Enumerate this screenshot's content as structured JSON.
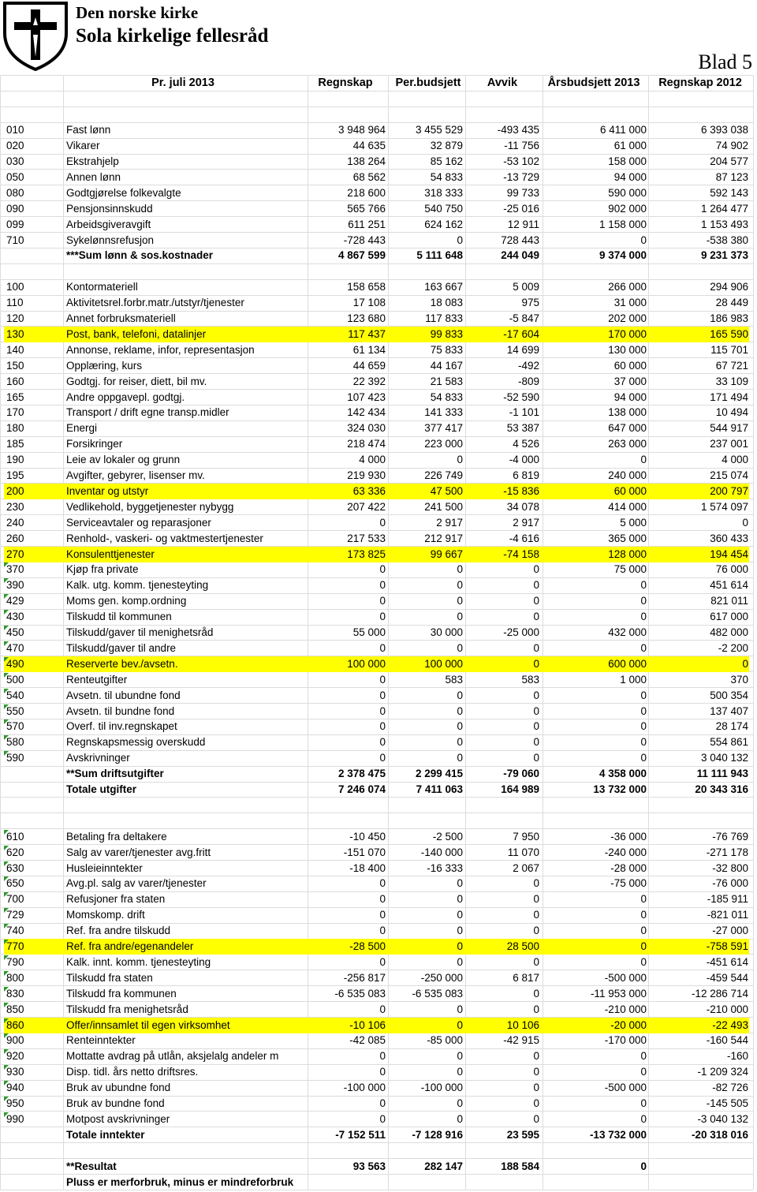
{
  "header": {
    "org": "Den norske kirke",
    "unit": "Sola kirkelige fellesråd",
    "sheet": "Blad 5"
  },
  "columns": [
    "Pr. juli 2013",
    "Regnskap",
    "Per.budsjett",
    "Avvik",
    "Årsbudsjett 2013",
    "Regnskap 2012"
  ],
  "groups": [
    {
      "rows": [
        {
          "code": "010",
          "name": "Fast lønn",
          "values": [
            "3 948 964",
            "3 455 529",
            "-493 435",
            "6 411 000",
            "6 393 038"
          ]
        },
        {
          "code": "020",
          "name": "Vikarer",
          "values": [
            "44 635",
            "32 879",
            "-11 756",
            "61 000",
            "74 902"
          ]
        },
        {
          "code": "030",
          "name": "Ekstrahjelp",
          "values": [
            "138 264",
            "85 162",
            "-53 102",
            "158 000",
            "204 577"
          ]
        },
        {
          "code": "050",
          "name": "Annen lønn",
          "values": [
            "68 562",
            "54 833",
            "-13 729",
            "94 000",
            "87 123"
          ]
        },
        {
          "code": "080",
          "name": "Godtgjørelse folkevalgte",
          "values": [
            "218 600",
            "318 333",
            "99 733",
            "590 000",
            "592 143"
          ]
        },
        {
          "code": "090",
          "name": "Pensjonsinnskudd",
          "values": [
            "565 766",
            "540 750",
            "-25 016",
            "902 000",
            "1 264 477"
          ]
        },
        {
          "code": "099",
          "name": "Arbeidsgiveravgift",
          "values": [
            "611 251",
            "624 162",
            "12 911",
            "1 158 000",
            "1 153 493"
          ]
        },
        {
          "code": "710",
          "name": "Sykelønnsrefusjon",
          "values": [
            "-728 443",
            "0",
            "728 443",
            "0",
            "-538 380"
          ]
        },
        {
          "name": "***Sum lønn & sos.kostnader",
          "values": [
            "4 867 599",
            "5 111 648",
            "244 049",
            "9 374 000",
            "9 231 373"
          ],
          "bold": true
        }
      ]
    },
    {
      "rows": [
        {
          "code": "100",
          "name": "Kontormateriell",
          "values": [
            "158 658",
            "163 667",
            "5 009",
            "266 000",
            "294 906"
          ]
        },
        {
          "code": "110",
          "name": "Aktivitetsrel.forbr.matr./utstyr/tjenester",
          "values": [
            "17 108",
            "18 083",
            "975",
            "31 000",
            "28 449"
          ]
        },
        {
          "code": "120",
          "name": "Annet forbruksmateriell",
          "values": [
            "123 680",
            "117 833",
            "-5 847",
            "202 000",
            "186 983"
          ]
        },
        {
          "code": "130",
          "name": "Post, bank, telefoni, datalinjer",
          "values": [
            "117 437",
            "99 833",
            "-17 604",
            "170 000",
            "165 590"
          ],
          "highlight": true
        },
        {
          "code": "140",
          "name": "Annonse, reklame, infor, representasjon",
          "values": [
            "61 134",
            "75 833",
            "14 699",
            "130 000",
            "115 701"
          ]
        },
        {
          "code": "150",
          "name": "Opplæring, kurs",
          "values": [
            "44 659",
            "44 167",
            "-492",
            "60 000",
            "67 721"
          ]
        },
        {
          "code": "160",
          "name": "Godtgj. for reiser, diett, bil mv.",
          "values": [
            "22 392",
            "21 583",
            "-809",
            "37 000",
            "33 109"
          ]
        },
        {
          "code": "165",
          "name": "Andre oppgavepl. godtgj.",
          "values": [
            "107 423",
            "54 833",
            "-52 590",
            "94 000",
            "171 494"
          ]
        },
        {
          "code": "170",
          "name": "Transport / drift egne transp.midler",
          "values": [
            "142 434",
            "141 333",
            "-1 101",
            "138 000",
            "10 494"
          ]
        },
        {
          "code": "180",
          "name": "Energi",
          "values": [
            "324 030",
            "377 417",
            "53 387",
            "647 000",
            "544 917"
          ]
        },
        {
          "code": "185",
          "name": "Forsikringer",
          "values": [
            "218 474",
            "223 000",
            "4 526",
            "263 000",
            "237 001"
          ]
        },
        {
          "code": "190",
          "name": "Leie av lokaler og grunn",
          "values": [
            "4 000",
            "0",
            "-4 000",
            "0",
            "4 000"
          ]
        },
        {
          "code": "195",
          "name": "Avgifter, gebyrer, lisenser mv.",
          "values": [
            "219 930",
            "226 749",
            "6 819",
            "240 000",
            "215 074"
          ]
        },
        {
          "code": "200",
          "name": "Inventar og utstyr",
          "values": [
            "63 336",
            "47 500",
            "-15 836",
            "60 000",
            "200 797"
          ],
          "highlight": true
        },
        {
          "code": "230",
          "name": "Vedlikehold, byggetjenester nybygg",
          "values": [
            "207 422",
            "241 500",
            "34 078",
            "414 000",
            "1 574 097"
          ]
        },
        {
          "code": "240",
          "name": "Serviceavtaler og reparasjoner",
          "values": [
            "0",
            "2 917",
            "2 917",
            "5 000",
            "0"
          ]
        },
        {
          "code": "260",
          "name": "Renhold-, vaskeri- og vaktmestertjenester",
          "values": [
            "217 533",
            "212 917",
            "-4 616",
            "365 000",
            "360 433"
          ]
        },
        {
          "code": "270",
          "name": "Konsulenttjenester",
          "values": [
            "173 825",
            "99 667",
            "-74 158",
            "128 000",
            "194 454"
          ],
          "highlight": true
        },
        {
          "code": "370",
          "name": "Kjøp fra private",
          "values": [
            "0",
            "0",
            "0",
            "75 000",
            "76 000"
          ]
        },
        {
          "code": "390",
          "name": "Kalk. utg. komm. tjenesteyting",
          "values": [
            "0",
            "0",
            "0",
            "0",
            "451 614"
          ]
        },
        {
          "code": "429",
          "name": "Moms gen. komp.ordning",
          "values": [
            "0",
            "0",
            "0",
            "0",
            "821 011"
          ]
        },
        {
          "code": "430",
          "name": "Tilskudd til kommunen",
          "values": [
            "0",
            "0",
            "0",
            "0",
            "617 000"
          ]
        },
        {
          "code": "450",
          "name": "Tilskudd/gaver til menighetsråd",
          "values": [
            "55 000",
            "30 000",
            "-25 000",
            "432 000",
            "482 000"
          ]
        },
        {
          "code": "470",
          "name": "Tilskudd/gaver til andre",
          "values": [
            "0",
            "0",
            "0",
            "0",
            "-2 200"
          ]
        },
        {
          "code": "490",
          "name": "Reserverte bev./avsetn.",
          "values": [
            "100 000",
            "100 000",
            "0",
            "600 000",
            "0"
          ],
          "highlight": true
        },
        {
          "code": "500",
          "name": "Renteutgifter",
          "values": [
            "0",
            "583",
            "583",
            "1 000",
            "370"
          ]
        },
        {
          "code": "540",
          "name": "Avsetn. til ubundne fond",
          "values": [
            "0",
            "0",
            "0",
            "0",
            "500 354"
          ]
        },
        {
          "code": "550",
          "name": "Avsetn. til bundne fond",
          "values": [
            "0",
            "0",
            "0",
            "0",
            "137 407"
          ]
        },
        {
          "code": "570",
          "name": "Overf. til inv.regnskapet",
          "values": [
            "0",
            "0",
            "0",
            "0",
            "28 174"
          ]
        },
        {
          "code": "580",
          "name": "Regnskapsmessig overskudd",
          "values": [
            "0",
            "0",
            "0",
            "0",
            "554 861"
          ]
        },
        {
          "code": "590",
          "name": "Avskrivninger",
          "values": [
            "0",
            "0",
            "0",
            "0",
            "3 040 132"
          ]
        },
        {
          "name": "**Sum driftsutgifter",
          "values": [
            "2 378 475",
            "2 299 415",
            "-79 060",
            "4 358 000",
            "11 111 943"
          ],
          "bold": true
        },
        {
          "name": "Totale utgifter",
          "values": [
            "7 246 074",
            "7 411 063",
            "164 989",
            "13 732 000",
            "20 343 316"
          ],
          "bold": true
        }
      ]
    },
    {
      "rows": [
        {
          "code": "610",
          "name": "Betaling fra deltakere",
          "values": [
            "-10 450",
            "-2 500",
            "7 950",
            "-36 000",
            "-76 769"
          ]
        },
        {
          "code": "620",
          "name": "Salg av varer/tjenester avg.fritt",
          "values": [
            "-151 070",
            "-140 000",
            "11 070",
            "-240 000",
            "-271 178"
          ]
        },
        {
          "code": "630",
          "name": "Husleieinntekter",
          "values": [
            "-18 400",
            "-16 333",
            "2 067",
            "-28 000",
            "-32 800"
          ]
        },
        {
          "code": "650",
          "name": "Avg.pl. salg av varer/tjenester",
          "values": [
            "0",
            "0",
            "0",
            "-75 000",
            "-76 000"
          ]
        },
        {
          "code": "700",
          "name": "Refusjoner fra staten",
          "values": [
            "0",
            "0",
            "0",
            "0",
            "-185 911"
          ]
        },
        {
          "code": "729",
          "name": "Momskomp. drift",
          "values": [
            "0",
            "0",
            "0",
            "0",
            "-821 011"
          ]
        },
        {
          "code": "740",
          "name": "Ref. fra andre tilskudd",
          "values": [
            "0",
            "0",
            "0",
            "0",
            "-27 000"
          ]
        },
        {
          "code": "770",
          "name": "Ref. fra andre/egenandeler",
          "values": [
            "-28 500",
            "0",
            "28 500",
            "0",
            "-758 591"
          ],
          "highlight": true
        },
        {
          "code": "790",
          "name": "Kalk. innt. komm. tjenesteyting",
          "values": [
            "0",
            "0",
            "0",
            "0",
            "-451 614"
          ]
        },
        {
          "code": "800",
          "name": "Tilskudd fra staten",
          "values": [
            "-256 817",
            "-250 000",
            "6 817",
            "-500 000",
            "-459 544"
          ]
        },
        {
          "code": "830",
          "name": "Tilskudd fra kommunen",
          "values": [
            "-6 535 083",
            "-6 535 083",
            "0",
            "-11 953 000",
            "-12 286 714"
          ]
        },
        {
          "code": "850",
          "name": "Tilskudd fra menighetsråd",
          "values": [
            "0",
            "0",
            "0",
            "-210 000",
            "-210 000"
          ]
        },
        {
          "code": "860",
          "name": "Offer/innsamlet til egen virksomhet",
          "values": [
            "-10 106",
            "0",
            "10 106",
            "-20 000",
            "-22 493"
          ],
          "highlight": true
        },
        {
          "code": "900",
          "name": "Renteinntekter",
          "values": [
            "-42 085",
            "-85 000",
            "-42 915",
            "-170 000",
            "-160 544"
          ]
        },
        {
          "code": "920",
          "name": "Mottatte avdrag på utlån, aksjelalg andeler m",
          "values": [
            "0",
            "0",
            "0",
            "0",
            "-160"
          ]
        },
        {
          "code": "930",
          "name": "Disp. tidl. års netto driftsres.",
          "values": [
            "0",
            "0",
            "0",
            "0",
            "-1 209 324"
          ]
        },
        {
          "code": "940",
          "name": "Bruk av ubundne fond",
          "values": [
            "-100 000",
            "-100 000",
            "0",
            "-500 000",
            "-82 726"
          ]
        },
        {
          "code": "950",
          "name": "Bruk av bundne fond",
          "values": [
            "0",
            "0",
            "0",
            "0",
            "-145 505"
          ]
        },
        {
          "code": "990",
          "name": "Motpost avskrivninger",
          "values": [
            "0",
            "0",
            "0",
            "0",
            "-3 040 132"
          ]
        },
        {
          "name": "Totale inntekter",
          "values": [
            "-7 152 511",
            "-7 128 916",
            "23 595",
            "-13 732 000",
            "-20 318 016"
          ],
          "bold": true
        }
      ]
    },
    {
      "rows": [
        {
          "name": "**Resultat",
          "values": [
            "93 563",
            "282 147",
            "188 584",
            "0"
          ],
          "bold": true
        },
        {
          "name": "Pluss er merforbruk, minus er mindreforbruk",
          "bold": true
        }
      ]
    }
  ]
}
